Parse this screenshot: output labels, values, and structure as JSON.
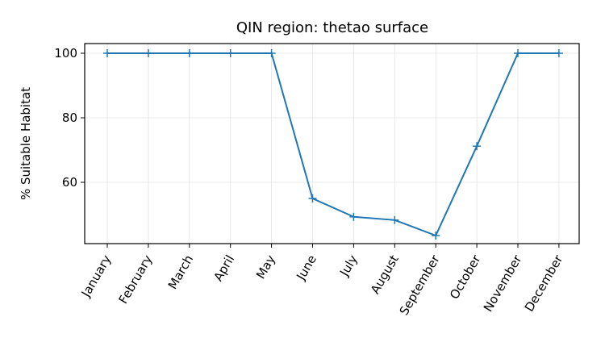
{
  "chart_data": {
    "type": "line",
    "title": "QIN region: thetao surface",
    "xlabel": "",
    "ylabel": "% Suitable Habitat",
    "categories": [
      "January",
      "February",
      "March",
      "April",
      "May",
      "June",
      "July",
      "August",
      "September",
      "October",
      "November",
      "December"
    ],
    "series": [
      {
        "values": [
          100,
          100,
          100,
          100,
          100,
          55,
          49.3,
          48.3,
          43.5,
          71.2,
          100,
          100
        ]
      }
    ],
    "yticks": [
      60,
      80,
      100
    ],
    "ylim": [
      41.0,
      103.0
    ],
    "grid": true,
    "marker": "plus",
    "line_color": "#1f77b4"
  }
}
